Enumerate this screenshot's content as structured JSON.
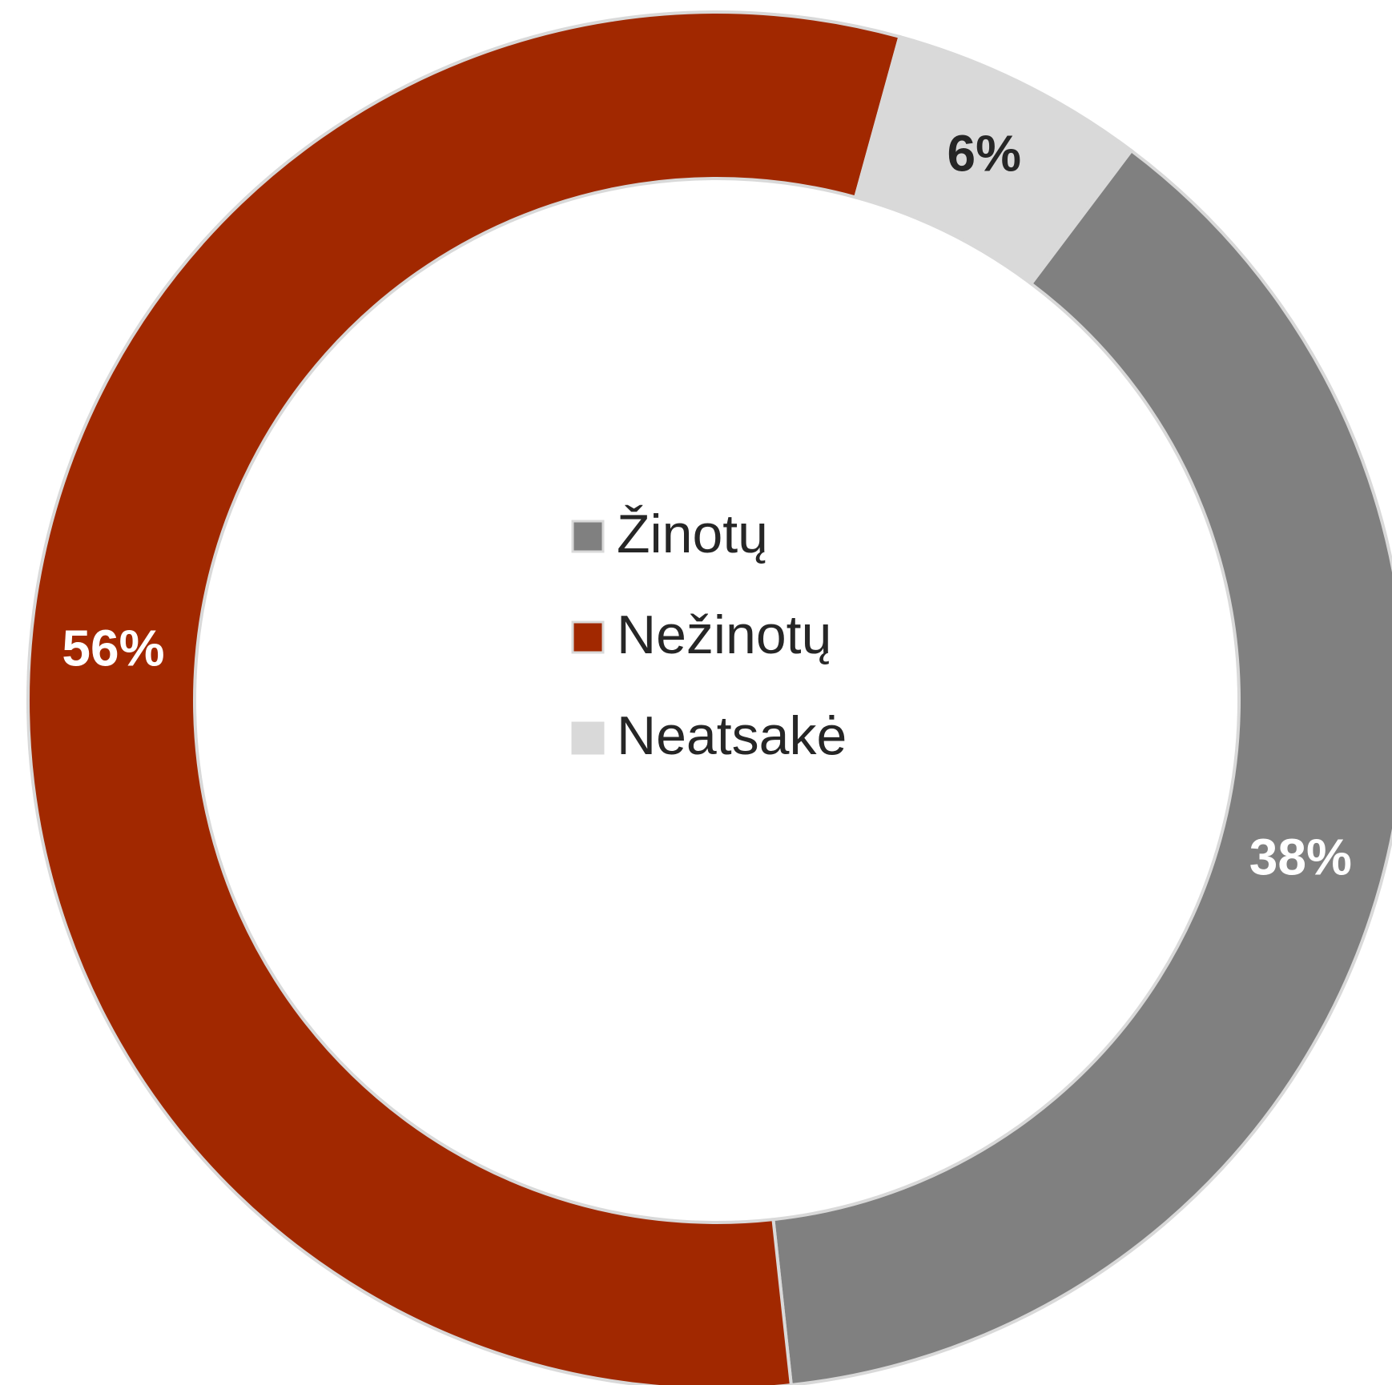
{
  "chart_data": {
    "type": "pie",
    "categories": [
      "Žinotų",
      "Nežinotų",
      "Neatsakė"
    ],
    "values": [
      38,
      56,
      6
    ],
    "value_labels": [
      "38%",
      "56%",
      "6%"
    ],
    "colors": [
      "#808080",
      "#a12800",
      "#d9d9d9"
    ],
    "legend": "center"
  }
}
